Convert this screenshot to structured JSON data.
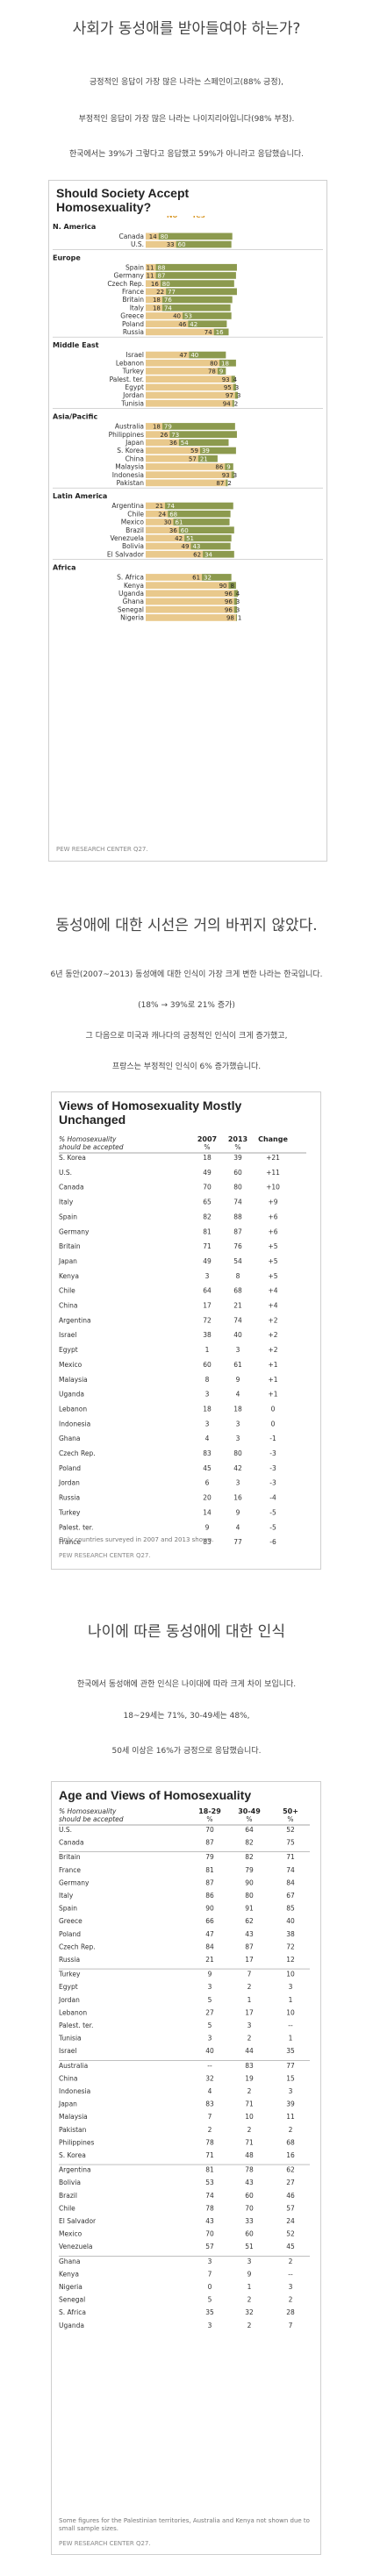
{
  "section1": {
    "heading": "사회가 동성애를 받아들여야 하는가?",
    "paragraphs": [
      "긍정적인 응답이 가장 많은 나라는 스페인이고(88% 긍정),",
      "부정적인 응답이 가장 많은 나라는 나이지리아입니다(98% 부정).",
      "한국에서는 39%가 그렇다고 응답했고 59%가 아니라고 응답했습니다."
    ]
  },
  "section2": {
    "heading": "동성애에 대한 시선은 거의 바뀌지 않았다.",
    "paragraphs": [
      "6년 동안(2007~2013) 동성애에 대한 인식이 가장 크게 변한 나라는 한국입니다.",
      "(18% → 39%로 21% 증가)",
      "그 다음으로 미국과 캐나다의 긍정적인 인식이 크게 증가했고,",
      "프랑스는 부정적인 인식이 6% 증가했습니다."
    ]
  },
  "section3": {
    "heading": "나이에 따른 동성애에 대한 인식",
    "paragraphs": [
      "한국에서 동성애에 관한 인식은 나이대에 따라 크게 차이 보입니다.",
      "18~29세는 71%, 30-49세는 48%,",
      "50세 이상은 16%가 긍정으로 응답했습니다."
    ]
  },
  "chart_data": [
    {
      "type": "bar",
      "title": "Should Society Accept Homosexuality?",
      "col_headers": [
        "No",
        "Yes"
      ],
      "colors": {
        "no": "#e9c98c",
        "yes": "#8c9a4e",
        "header": "#d99a2b"
      },
      "groups": [
        {
          "name": "N. America",
          "rows": [
            [
              "Canada",
              14,
              80
            ],
            [
              "U.S.",
              33,
              60
            ]
          ]
        },
        {
          "name": "Europe",
          "rows": [
            [
              "Spain",
              11,
              88
            ],
            [
              "Germany",
              11,
              87
            ],
            [
              "Czech Rep.",
              16,
              80
            ],
            [
              "France",
              22,
              77
            ],
            [
              "Britain",
              18,
              76
            ],
            [
              "Italy",
              18,
              74
            ],
            [
              "Greece",
              40,
              53
            ],
            [
              "Poland",
              46,
              42
            ],
            [
              "Russia",
              74,
              16
            ]
          ]
        },
        {
          "name": "Middle East",
          "rows": [
            [
              "Israel",
              47,
              40
            ],
            [
              "Lebanon",
              80,
              18
            ],
            [
              "Turkey",
              78,
              9
            ],
            [
              "Palest. ter.",
              93,
              4
            ],
            [
              "Egypt",
              95,
              3
            ],
            [
              "Jordan",
              97,
              3
            ],
            [
              "Tunisia",
              94,
              2
            ]
          ]
        },
        {
          "name": "Asia/Pacific",
          "rows": [
            [
              "Australia",
              18,
              79
            ],
            [
              "Philippines",
              26,
              73
            ],
            [
              "Japan",
              36,
              54
            ],
            [
              "S. Korea",
              59,
              39
            ],
            [
              "China",
              57,
              21
            ],
            [
              "Malaysia",
              86,
              9
            ],
            [
              "Indonesia",
              93,
              3
            ],
            [
              "Pakistan",
              87,
              2
            ]
          ]
        },
        {
          "name": "Latin America",
          "rows": [
            [
              "Argentina",
              21,
              74
            ],
            [
              "Chile",
              24,
              68
            ],
            [
              "Mexico",
              30,
              61
            ],
            [
              "Brazil",
              36,
              60
            ],
            [
              "Venezuela",
              42,
              51
            ],
            [
              "Bolivia",
              49,
              43
            ],
            [
              "El Salvador",
              62,
              34
            ]
          ]
        },
        {
          "name": "Africa",
          "rows": [
            [
              "S. Africa",
              61,
              32
            ],
            [
              "Kenya",
              90,
              8
            ],
            [
              "Uganda",
              96,
              4
            ],
            [
              "Ghana",
              96,
              3
            ],
            [
              "Senegal",
              96,
              3
            ],
            [
              "Nigeria",
              98,
              1
            ]
          ]
        }
      ],
      "source": "PEW RESEARCH CENTER Q27."
    },
    {
      "type": "table",
      "title": "Views of Homosexuality Mostly Unchanged",
      "row_header": "% Homosexuality should be accepted",
      "columns": [
        "2007",
        "2013",
        "Change"
      ],
      "units": [
        "%",
        "%",
        ""
      ],
      "rows": [
        [
          "S. Korea",
          "18",
          "39",
          "+21"
        ],
        [
          "U.S.",
          "49",
          "60",
          "+11"
        ],
        [
          "Canada",
          "70",
          "80",
          "+10"
        ],
        [
          "Italy",
          "65",
          "74",
          "+9"
        ],
        [
          "Spain",
          "82",
          "88",
          "+6"
        ],
        [
          "Germany",
          "81",
          "87",
          "+6"
        ],
        [
          "Britain",
          "71",
          "76",
          "+5"
        ],
        [
          "Japan",
          "49",
          "54",
          "+5"
        ],
        [
          "Kenya",
          "3",
          "8",
          "+5"
        ],
        [
          "Chile",
          "64",
          "68",
          "+4"
        ],
        [
          "China",
          "17",
          "21",
          "+4"
        ],
        [
          "Argentina",
          "72",
          "74",
          "+2"
        ],
        [
          "Israel",
          "38",
          "40",
          "+2"
        ],
        [
          "Egypt",
          "1",
          "3",
          "+2"
        ],
        [
          "Mexico",
          "60",
          "61",
          "+1"
        ],
        [
          "Malaysia",
          "8",
          "9",
          "+1"
        ],
        [
          "Uganda",
          "3",
          "4",
          "+1"
        ],
        [
          "Lebanon",
          "18",
          "18",
          "0"
        ],
        [
          "Indonesia",
          "3",
          "3",
          "0"
        ],
        [
          "Ghana",
          "4",
          "3",
          "-1"
        ],
        [
          "Czech Rep.",
          "83",
          "80",
          "-3"
        ],
        [
          "Poland",
          "45",
          "42",
          "-3"
        ],
        [
          "Jordan",
          "6",
          "3",
          "-3"
        ],
        [
          "Russia",
          "20",
          "16",
          "-4"
        ],
        [
          "Turkey",
          "14",
          "9",
          "-5"
        ],
        [
          "Palest. ter.",
          "9",
          "4",
          "-5"
        ],
        [
          "France",
          "83",
          "77",
          "-6"
        ]
      ],
      "note": "Only countries surveyed in 2007 and 2013 shown.",
      "source": "PEW RESEARCH CENTER Q27."
    },
    {
      "type": "table",
      "title": "Age and Views of Homosexuality",
      "row_header": "% Homosexuality should be accepted",
      "columns": [
        "18-29",
        "30-49",
        "50+"
      ],
      "units": [
        "%",
        "%",
        "%"
      ],
      "groups": [
        [
          [
            "U.S.",
            "70",
            "64",
            "52"
          ],
          [
            "Canada",
            "87",
            "82",
            "75"
          ]
        ],
        [
          [
            "Britain",
            "79",
            "82",
            "71"
          ],
          [
            "France",
            "81",
            "79",
            "74"
          ],
          [
            "Germany",
            "87",
            "90",
            "84"
          ],
          [
            "Italy",
            "86",
            "80",
            "67"
          ],
          [
            "Spain",
            "90",
            "91",
            "85"
          ],
          [
            "Greece",
            "66",
            "62",
            "40"
          ],
          [
            "Poland",
            "47",
            "43",
            "38"
          ],
          [
            "Czech Rep.",
            "84",
            "87",
            "72"
          ],
          [
            "Russia",
            "21",
            "17",
            "12"
          ]
        ],
        [
          [
            "Turkey",
            "9",
            "7",
            "10"
          ],
          [
            "Egypt",
            "3",
            "2",
            "3"
          ],
          [
            "Jordan",
            "5",
            "1",
            "1"
          ],
          [
            "Lebanon",
            "27",
            "17",
            "10"
          ],
          [
            "Palest. ter.",
            "5",
            "3",
            "--"
          ],
          [
            "Tunisia",
            "3",
            "2",
            "1"
          ],
          [
            "Israel",
            "40",
            "44",
            "35"
          ]
        ],
        [
          [
            "Australia",
            "--",
            "83",
            "77"
          ],
          [
            "China",
            "32",
            "19",
            "15"
          ],
          [
            "Indonesia",
            "4",
            "2",
            "3"
          ],
          [
            "Japan",
            "83",
            "71",
            "39"
          ],
          [
            "Malaysia",
            "7",
            "10",
            "11"
          ],
          [
            "Pakistan",
            "2",
            "2",
            "2"
          ],
          [
            "Philippines",
            "78",
            "71",
            "68"
          ],
          [
            "S. Korea",
            "71",
            "48",
            "16"
          ]
        ],
        [
          [
            "Argentina",
            "81",
            "78",
            "62"
          ],
          [
            "Bolivia",
            "53",
            "43",
            "27"
          ],
          [
            "Brazil",
            "74",
            "60",
            "46"
          ],
          [
            "Chile",
            "78",
            "70",
            "57"
          ],
          [
            "El Salvador",
            "43",
            "33",
            "24"
          ],
          [
            "Mexico",
            "70",
            "60",
            "52"
          ],
          [
            "Venezuela",
            "57",
            "51",
            "45"
          ]
        ],
        [
          [
            "Ghana",
            "3",
            "3",
            "2"
          ],
          [
            "Kenya",
            "7",
            "9",
            "--"
          ],
          [
            "Nigeria",
            "0",
            "1",
            "3"
          ],
          [
            "Senegal",
            "5",
            "2",
            "2"
          ],
          [
            "S. Africa",
            "35",
            "32",
            "28"
          ],
          [
            "Uganda",
            "3",
            "2",
            "7"
          ]
        ]
      ],
      "note": "Some figures for the Palestinian territories, Australia and Kenya not shown due to small sample sizes.",
      "source": "PEW RESEARCH CENTER Q27."
    }
  ]
}
